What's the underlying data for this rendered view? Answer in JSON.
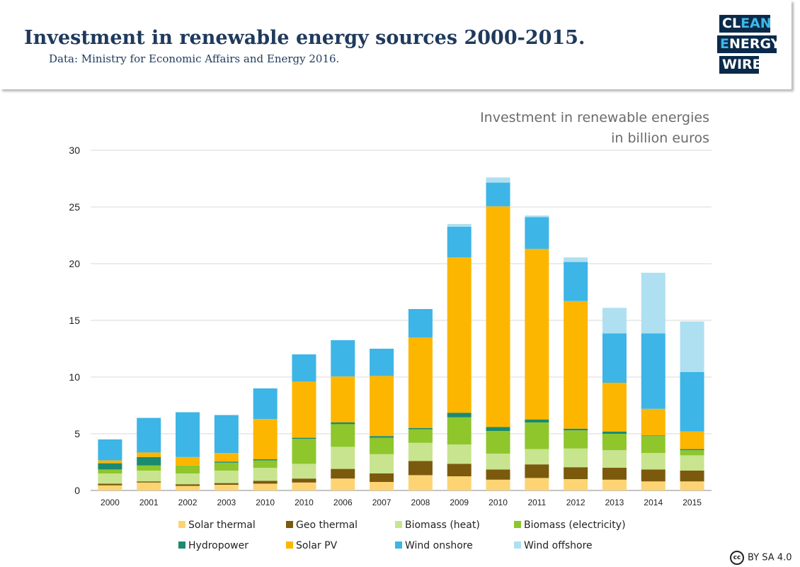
{
  "header": {
    "title": "Investment in renewable energy sources 2000-2015.",
    "subtitle": "Data: Ministry for Economic Affairs and Energy 2016."
  },
  "logo": {
    "line1_a": "CL",
    "line1_b": "EAN",
    "line2_a": "E",
    "line2_b": "NERGY",
    "line3_a": "WIRE"
  },
  "license": {
    "icon": "cc",
    "text": "BY SA 4.0"
  },
  "chart_data": {
    "type": "bar",
    "stacked": true,
    "title": "Investment in renewable energies",
    "subtitle": "in billion euros",
    "ylim": [
      0,
      30
    ],
    "yticks": [
      0,
      5,
      10,
      15,
      20,
      25,
      30
    ],
    "grid": true,
    "legend_position": "bottom",
    "categories": [
      "2000",
      "2001",
      "2002",
      "2003",
      "2010",
      "2010",
      "2006",
      "2007",
      "2008",
      "2009",
      "2010",
      "2011",
      "2012",
      "2013",
      "2014",
      "2015"
    ],
    "series": [
      {
        "name": "Solar thermal",
        "color": "#fcd473",
        "values": [
          0.45,
          0.7,
          0.4,
          0.5,
          0.6,
          0.7,
          1.05,
          0.75,
          1.35,
          1.25,
          0.95,
          1.1,
          1.0,
          0.95,
          0.8,
          0.8
        ]
      },
      {
        "name": "Geo thermal",
        "color": "#7b5a0d",
        "values": [
          0.15,
          0.1,
          0.15,
          0.15,
          0.25,
          0.35,
          0.85,
          0.75,
          1.25,
          1.1,
          0.9,
          1.2,
          1.05,
          1.05,
          1.05,
          0.95
        ]
      },
      {
        "name": "Biomass (heat)",
        "color": "#c8e48f",
        "values": [
          0.9,
          0.95,
          0.95,
          1.1,
          1.15,
          1.3,
          1.95,
          1.7,
          1.6,
          1.7,
          1.4,
          1.35,
          1.65,
          1.55,
          1.45,
          1.35
        ]
      },
      {
        "name": "Biomass (electricity)",
        "color": "#8ec62c",
        "values": [
          0.35,
          0.45,
          0.7,
          0.7,
          0.65,
          2.2,
          2.0,
          1.45,
          1.2,
          2.4,
          2.0,
          2.35,
          1.6,
          1.45,
          1.5,
          0.45
        ]
      },
      {
        "name": "Hydropower",
        "color": "#1b8a71",
        "values": [
          0.55,
          0.75,
          0.0,
          0.1,
          0.1,
          0.1,
          0.15,
          0.15,
          0.1,
          0.4,
          0.35,
          0.25,
          0.15,
          0.2,
          0.05,
          0.1
        ]
      },
      {
        "name": "Solar PV",
        "color": "#fcb600",
        "values": [
          0.25,
          0.4,
          0.75,
          0.75,
          3.55,
          4.95,
          4.05,
          5.3,
          8.0,
          13.7,
          19.45,
          15.05,
          11.25,
          4.3,
          2.35,
          1.55
        ]
      },
      {
        "name": "Wind onshore",
        "color": "#3db5e6",
        "values": [
          1.85,
          3.05,
          3.95,
          3.35,
          2.7,
          2.4,
          3.2,
          2.4,
          2.5,
          2.7,
          2.1,
          2.8,
          3.45,
          4.35,
          6.65,
          5.25
        ]
      },
      {
        "name": "Wind offshore",
        "color": "#aee0f1",
        "values": [
          0,
          0,
          0,
          0,
          0,
          0,
          0,
          0,
          0,
          0.25,
          0.45,
          0.15,
          0.4,
          2.25,
          5.35,
          4.45
        ]
      }
    ]
  }
}
